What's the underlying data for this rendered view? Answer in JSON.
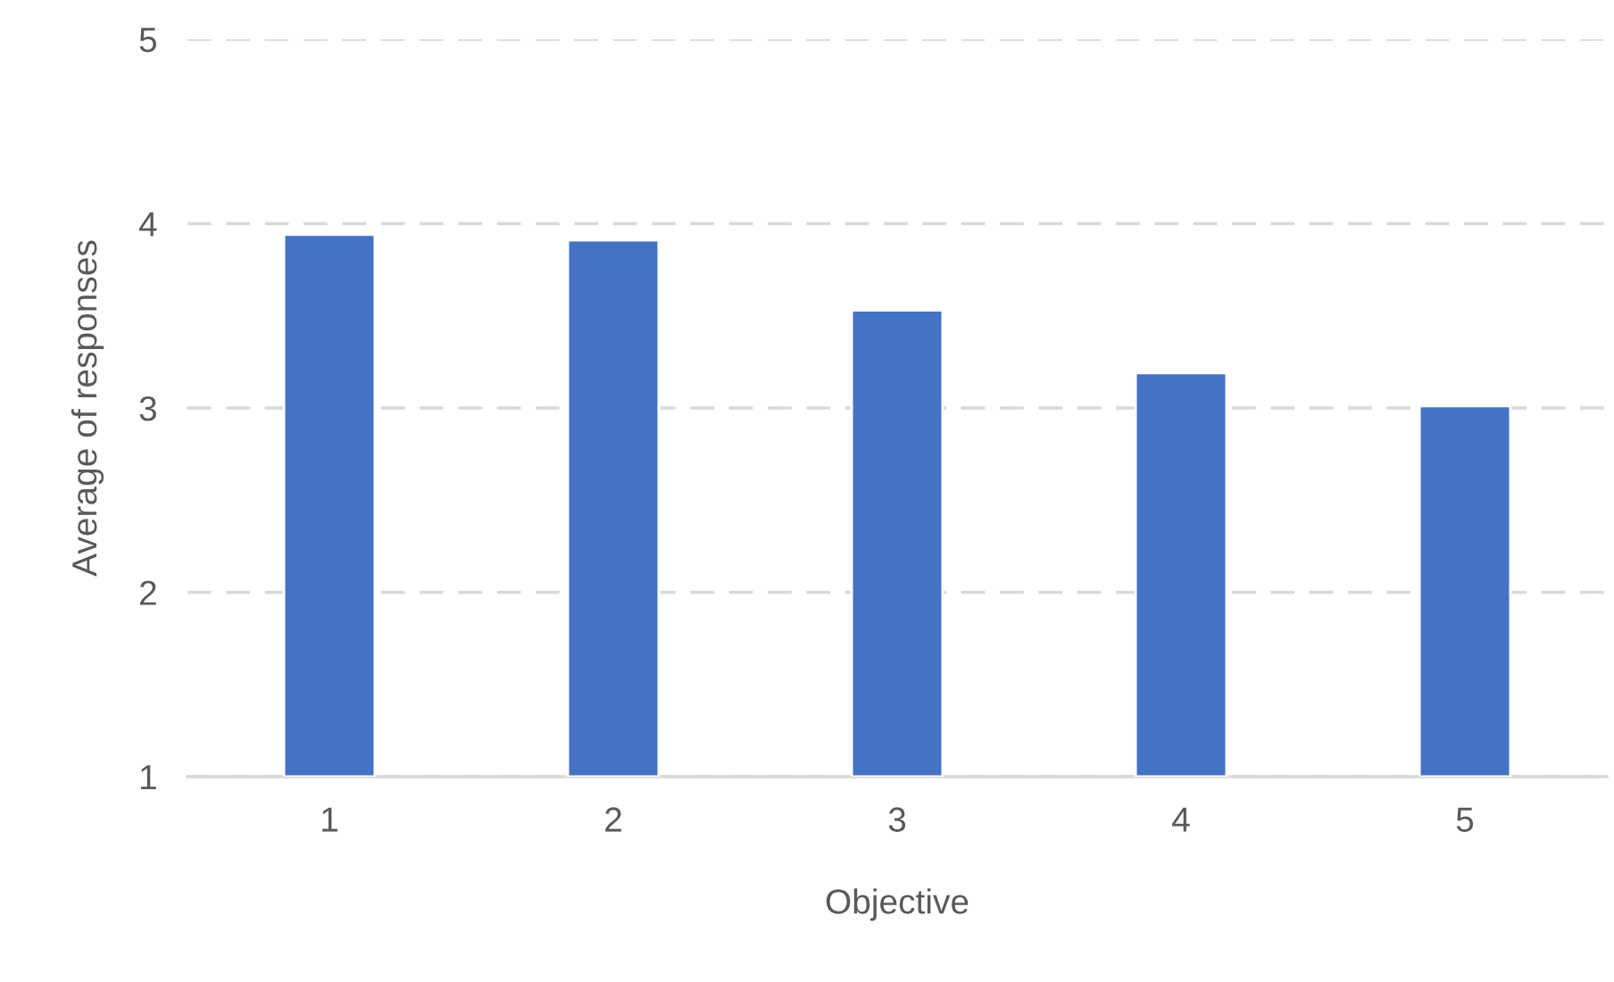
{
  "chart_data": {
    "type": "bar",
    "xlabel": "Objective",
    "ylabel": "Average of responses",
    "categories": [
      "1",
      "2",
      "3",
      "4",
      "5"
    ],
    "values": [
      3.94,
      3.91,
      3.53,
      3.19,
      3.01
    ],
    "color": "#4472c4",
    "ylim": [
      1,
      5
    ],
    "yticks": [
      1,
      2,
      3,
      4,
      5
    ],
    "grid": "y",
    "legend": false
  }
}
